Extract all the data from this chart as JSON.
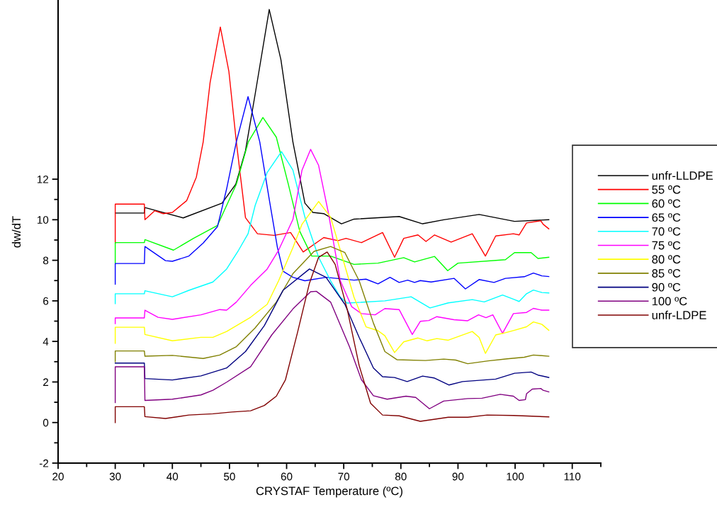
{
  "chart_data": {
    "type": "line",
    "xlabel": "CRYSTAF Temperature (ºC)",
    "ylabel": "dw/dT",
    "xlim": [
      20,
      115
    ],
    "xticks": [
      20,
      {
        "value": 25,
        "label": null
      },
      30,
      {
        "value": 35,
        "label": null
      },
      40,
      {
        "value": 45,
        "label": null
      },
      50,
      {
        "value": 55,
        "label": null
      },
      60,
      {
        "value": 65,
        "label": null
      },
      70,
      {
        "value": 75,
        "label": null
      },
      80,
      {
        "value": 85,
        "label": null
      },
      90,
      {
        "value": 95,
        "label": null
      },
      100,
      {
        "value": 105,
        "label": null
      },
      110,
      {
        "value": 115,
        "label": null
      }
    ],
    "ylim": [
      -2,
      20.8
    ],
    "yticks": [
      -2,
      {
        "value": -1,
        "label": null
      },
      0,
      {
        "value": 1,
        "label": null
      },
      2,
      {
        "value": 3,
        "label": null
      },
      4,
      {
        "value": 5,
        "label": null
      },
      6,
      {
        "value": 7,
        "label": null
      },
      8,
      {
        "value": 9,
        "label": null
      },
      10,
      {
        "value": 11,
        "label": null
      },
      12
    ],
    "grid": false,
    "legend": "right",
    "marker": "none",
    "line_style": "solid",
    "series": [
      {
        "name": "unfr-LLDPE",
        "color": "#000000",
        "x": [
          30,
          35.1,
          35.2,
          41.9,
          48.7,
          51.1,
          52.8,
          54.5,
          56.96,
          59.0,
          61.1,
          63.2,
          64.6,
          66.5,
          69.6,
          71.8,
          79.7,
          83.8,
          87.5,
          93.7,
          99.9,
          105.9
        ],
        "values": [
          10.33,
          10.33,
          10.6,
          10.09,
          10.82,
          11.75,
          13.4,
          16.2,
          20.37,
          17.9,
          13.84,
          10.82,
          10.36,
          10.3,
          9.8,
          10.03,
          10.16,
          9.8,
          10.0,
          10.26,
          9.92,
          10.0
        ]
      },
      {
        "name": "55 ºC",
        "color": "#ff0000",
        "x": [
          30,
          30,
          35.1,
          35.2,
          36.9,
          38.4,
          40.0,
          42.5,
          44.2,
          45.4,
          46.6,
          48.4,
          49.9,
          51.2,
          52.8,
          54.9,
          57.8,
          60.7,
          62.9,
          66.5,
          69.0,
          70.4,
          73.1,
          76.8,
          78.9,
          80.5,
          83.0,
          84.4,
          85.9,
          88.8,
          92.5,
          94.8,
          96.6,
          99.7,
          100.7,
          102.0,
          104.5,
          104.9,
          105.9
        ],
        "values": [
          8.85,
          10.77,
          10.77,
          10.0,
          10.44,
          10.3,
          10.36,
          10.94,
          12.1,
          13.84,
          16.75,
          19.5,
          17.3,
          13.84,
          10.1,
          9.31,
          9.23,
          9.37,
          8.41,
          9.12,
          8.97,
          9.08,
          8.87,
          9.37,
          8.15,
          9.08,
          9.25,
          8.93,
          9.25,
          8.9,
          9.31,
          8.21,
          9.2,
          9.31,
          9.25,
          9.84,
          9.95,
          9.78,
          9.55
        ]
      },
      {
        "name": "60 ºC",
        "color": "#00ff00",
        "x": [
          30,
          30,
          35.1,
          35.2,
          40.2,
          43.7,
          47.9,
          51.2,
          53.3,
          55.85,
          58.2,
          60.3,
          62.3,
          64.4,
          67.7,
          71.8,
          76.0,
          80.5,
          82.4,
          85.9,
          88.2,
          90.0,
          98.3,
          99.9,
          102.8,
          104.0,
          105.9
        ],
        "values": [
          7.86,
          8.87,
          8.87,
          9.02,
          8.5,
          9.08,
          9.72,
          11.75,
          13.84,
          15.04,
          14.07,
          11.75,
          9.43,
          8.21,
          8.21,
          7.8,
          7.86,
          8.13,
          7.92,
          8.19,
          7.49,
          7.86,
          8.03,
          8.38,
          8.38,
          8.09,
          8.15
        ]
      },
      {
        "name": "65 ºC",
        "color": "#0000ff",
        "x": [
          30,
          30,
          35.1,
          35.2,
          38.8,
          40.0,
          42.9,
          45.4,
          47.9,
          49.5,
          51.2,
          53.25,
          55.3,
          57.0,
          58.4,
          59.4,
          61.1,
          63.2,
          66.9,
          71.8,
          73.9,
          76.0,
          78.1,
          79.7,
          81.2,
          82.4,
          83.4,
          85.3,
          89.3,
          91.3,
          93.7,
          96.3,
          98.3,
          101.6,
          103.2,
          104.7,
          105.9
        ],
        "values": [
          6.82,
          7.84,
          7.84,
          8.68,
          7.98,
          7.95,
          8.21,
          8.85,
          9.66,
          11.52,
          13.84,
          16.07,
          13.84,
          10.94,
          8.62,
          7.46,
          7.16,
          6.99,
          7.16,
          7.02,
          7.07,
          6.84,
          7.16,
          6.91,
          7.02,
          6.91,
          7.0,
          6.93,
          7.11,
          6.59,
          7.05,
          6.91,
          7.11,
          7.19,
          7.37,
          7.23,
          7.2
        ]
      },
      {
        "name": "70 ºC",
        "color": "#00ffff",
        "x": [
          30,
          30,
          35.1,
          35.2,
          40.0,
          42.9,
          47.1,
          49.5,
          51.6,
          53.25,
          54.5,
          56.6,
          59.1,
          61.1,
          63.2,
          65.6,
          67.7,
          69.4,
          70.6,
          77.2,
          81.8,
          85.1,
          88.3,
          92.5,
          94.6,
          97.8,
          99.9,
          100.7,
          102.0,
          103.2,
          104.7,
          105.9
        ],
        "values": [
          5.86,
          6.35,
          6.35,
          6.5,
          6.2,
          6.52,
          6.93,
          7.57,
          8.5,
          9.31,
          10.71,
          12.33,
          13.36,
          12.45,
          10.13,
          8.15,
          6.99,
          6.18,
          5.89,
          6.0,
          6.2,
          5.65,
          5.9,
          6.06,
          5.95,
          6.29,
          6.06,
          5.97,
          6.35,
          6.53,
          6.41,
          6.39
        ]
      },
      {
        "name": "75 ºC",
        "color": "#ff00ff",
        "x": [
          30,
          30,
          35.1,
          35.2,
          37.5,
          40.0,
          45.0,
          48.3,
          49.5,
          51.2,
          53.7,
          56.6,
          58.6,
          61.1,
          62.7,
          64.2,
          65.6,
          67.3,
          69.4,
          71.4,
          73.1,
          75.5,
          77.2,
          79.7,
          82.0,
          83.4,
          84.9,
          86.3,
          89.3,
          91.7,
          93.6,
          94.9,
          96.1,
          97.8,
          99.7,
          102.0,
          103.2,
          104.7,
          105.9
        ],
        "values": [
          4.88,
          5.16,
          5.16,
          5.54,
          5.19,
          5.09,
          5.31,
          5.57,
          5.54,
          5.94,
          6.76,
          7.57,
          8.5,
          10.01,
          12.45,
          13.47,
          12.68,
          10.36,
          6.99,
          5.71,
          5.37,
          5.31,
          5.62,
          5.57,
          4.34,
          4.99,
          5.03,
          5.22,
          5.07,
          5.02,
          5.31,
          5.17,
          5.31,
          4.4,
          5.37,
          5.43,
          5.63,
          5.54,
          5.54
        ]
      },
      {
        "name": "80 ºC",
        "color": "#ffff00",
        "x": [
          30,
          30,
          35.1,
          35.2,
          40.0,
          45.0,
          47.1,
          49.5,
          53.7,
          56.6,
          58.6,
          61.1,
          62.7,
          65.6,
          67.7,
          69.4,
          71.8,
          73.9,
          76.0,
          77.2,
          78.9,
          80.5,
          83.0,
          84.6,
          86.3,
          88.3,
          92.5,
          93.7,
          94.8,
          96.6,
          98.3,
          99.9,
          102.0,
          103.2,
          104.7,
          105.9
        ],
        "values": [
          3.91,
          4.7,
          4.7,
          4.34,
          4.03,
          4.2,
          4.2,
          4.49,
          5.19,
          5.83,
          6.99,
          8.62,
          9.78,
          10.9,
          10.13,
          8.5,
          6.18,
          4.72,
          4.53,
          4.28,
          3.45,
          3.98,
          4.17,
          4.03,
          4.14,
          4.06,
          4.49,
          4.2,
          3.41,
          4.32,
          4.43,
          4.55,
          4.72,
          4.96,
          4.84,
          4.55
        ]
      },
      {
        "name": "85 ºC",
        "color": "#808000",
        "x": [
          30,
          30,
          35.1,
          35.2,
          40.0,
          45.4,
          48.3,
          51.2,
          54.5,
          58.2,
          61.1,
          64.8,
          67.7,
          70.2,
          72.7,
          75.2,
          77.2,
          79.3,
          84.3,
          87.5,
          89.6,
          91.7,
          95.3,
          98.6,
          101.6,
          103.2,
          105.9
        ],
        "values": [
          3.0,
          3.53,
          3.53,
          3.27,
          3.31,
          3.16,
          3.33,
          3.74,
          4.67,
          5.94,
          7.34,
          8.44,
          8.68,
          8.38,
          6.99,
          4.9,
          3.5,
          3.1,
          3.06,
          3.13,
          3.08,
          2.9,
          3.04,
          3.14,
          3.22,
          3.33,
          3.27
        ]
      },
      {
        "name": "90 ºC",
        "color": "#000080",
        "x": [
          30,
          35.1,
          35.2,
          40.0,
          45.0,
          49.5,
          52.8,
          56.1,
          59.4,
          64.0,
          66.9,
          70.2,
          72.7,
          75.2,
          76.8,
          78.9,
          81.1,
          83.8,
          85.8,
          88.4,
          90.8,
          96.6,
          99.9,
          102.8,
          104.0,
          105.9
        ],
        "values": [
          2.93,
          2.93,
          2.17,
          2.1,
          2.3,
          2.69,
          3.5,
          4.78,
          6.53,
          7.57,
          7.16,
          5.83,
          4.2,
          2.69,
          2.26,
          2.22,
          2.02,
          2.29,
          2.2,
          1.85,
          2.02,
          2.14,
          2.43,
          2.49,
          2.34,
          2.22
        ]
      },
      {
        "name": "100 ºC",
        "color": "#800080",
        "x": [
          30,
          30,
          35.1,
          35.2,
          40.0,
          45.0,
          47.1,
          49.5,
          53.7,
          57.4,
          61.1,
          64.2,
          65.2,
          67.7,
          71.0,
          73.1,
          75.2,
          77.6,
          80.9,
          82.6,
          85.0,
          87.5,
          91.7,
          94.2,
          97.4,
          99.7,
          100.7,
          101.8,
          102.0,
          103.0,
          104.5,
          104.9,
          105.9
        ],
        "values": [
          0.98,
          2.75,
          2.75,
          1.09,
          1.15,
          1.36,
          1.59,
          1.99,
          2.75,
          4.32,
          5.6,
          6.45,
          6.47,
          5.94,
          3.74,
          2.11,
          1.32,
          1.15,
          1.3,
          1.24,
          0.68,
          1.06,
          1.18,
          1.2,
          1.39,
          1.3,
          1.09,
          1.13,
          1.42,
          1.65,
          1.68,
          1.59,
          1.51
        ]
      },
      {
        "name": "unfr-LDPE",
        "color": "#800000",
        "x": [
          30,
          30,
          35.1,
          35.2,
          38.8,
          42.9,
          47.1,
          50.4,
          53.7,
          56.1,
          58.2,
          59.8,
          61.9,
          64.0,
          65.6,
          67.1,
          68.5,
          70.6,
          72.7,
          74.7,
          76.8,
          79.7,
          83.4,
          88.3,
          91.7,
          95.1,
          99.7,
          105.9
        ],
        "values": [
          0,
          0.78,
          0.78,
          0.29,
          0.2,
          0.37,
          0.43,
          0.52,
          0.58,
          0.84,
          1.3,
          2.11,
          4.43,
          6.87,
          8.15,
          8.41,
          7.8,
          5.6,
          2.81,
          0.95,
          0.37,
          0.33,
          0.06,
          0.26,
          0.26,
          0.37,
          0.35,
          0.28
        ]
      }
    ]
  }
}
